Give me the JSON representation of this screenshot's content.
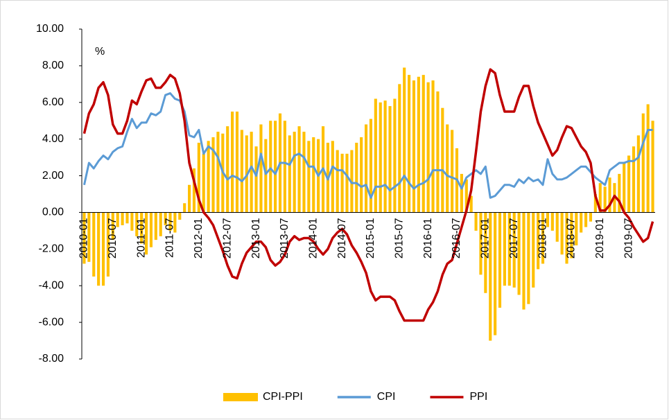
{
  "chart_data": {
    "type": "bar-line",
    "annotation": "%",
    "categories": [
      "2010-01",
      null,
      null,
      null,
      null,
      null,
      "2010-07",
      null,
      null,
      null,
      null,
      null,
      "2011-01",
      null,
      null,
      null,
      null,
      null,
      "2011-07",
      null,
      null,
      null,
      null,
      null,
      "2012-01",
      null,
      null,
      null,
      null,
      null,
      "2012-07",
      null,
      null,
      null,
      null,
      null,
      "2013-01",
      null,
      null,
      null,
      null,
      null,
      "2013-07",
      null,
      null,
      null,
      null,
      null,
      "2014-01",
      null,
      null,
      null,
      null,
      null,
      "2014-07",
      null,
      null,
      null,
      null,
      null,
      "2015-01",
      null,
      null,
      null,
      null,
      null,
      "2015-07",
      null,
      null,
      null,
      null,
      null,
      "2016-01",
      null,
      null,
      null,
      null,
      null,
      "2016-07",
      null,
      null,
      null,
      null,
      null,
      "2017-01",
      null,
      null,
      null,
      null,
      null,
      "2017-07",
      null,
      null,
      null,
      null,
      null,
      "2018-01",
      null,
      null,
      null,
      null,
      null,
      "2018-07",
      null,
      null,
      null,
      null,
      null,
      "2019-01",
      null,
      null,
      null,
      null,
      null,
      "2019-07",
      null,
      null,
      null,
      null,
      null
    ],
    "series": [
      {
        "name": "CPI-PPI",
        "kind": "bar",
        "color": "#ffc000",
        "values": [
          -2.8,
          -2.7,
          -3.5,
          -4.0,
          -4.0,
          -3.5,
          -1.5,
          -0.8,
          -0.7,
          -0.6,
          -1.0,
          -1.3,
          -1.7,
          -2.3,
          -1.9,
          -1.5,
          -1.3,
          -0.7,
          -1.0,
          -1.1,
          -0.4,
          0.5,
          1.5,
          2.4,
          3.8,
          3.2,
          3.9,
          4.1,
          4.4,
          4.3,
          4.7,
          5.5,
          5.5,
          4.5,
          4.2,
          4.4,
          3.6,
          4.8,
          4.0,
          5.0,
          5.0,
          5.4,
          5.0,
          4.2,
          4.4,
          4.7,
          4.4,
          3.9,
          4.1,
          4.0,
          4.7,
          3.8,
          3.9,
          3.4,
          3.2,
          3.2,
          3.4,
          3.8,
          4.1,
          4.8,
          5.1,
          6.2,
          6.0,
          6.1,
          5.8,
          6.2,
          7.0,
          7.9,
          7.5,
          7.2,
          7.4,
          7.5,
          7.1,
          7.2,
          6.6,
          5.7,
          4.8,
          4.5,
          3.5,
          2.1,
          1.8,
          0.9,
          -1.0,
          -3.4,
          -4.4,
          -7.0,
          -6.7,
          -5.2,
          -4.0,
          -4.0,
          -4.1,
          -4.5,
          -5.3,
          -5.0,
          -4.1,
          -3.1,
          -2.8,
          -0.8,
          -1.0,
          -1.6,
          -2.3,
          -2.8,
          -2.5,
          -1.8,
          -1.1,
          -0.8,
          -0.5,
          1.0,
          1.6,
          1.4,
          1.9,
          1.6,
          2.1,
          2.7,
          3.1,
          3.6,
          4.2,
          5.4,
          5.9,
          5.0
        ]
      },
      {
        "name": "CPI",
        "kind": "line",
        "color": "#5b9bd5",
        "values": [
          1.5,
          2.7,
          2.4,
          2.8,
          3.1,
          2.9,
          3.3,
          3.5,
          3.6,
          4.4,
          5.1,
          4.6,
          4.9,
          4.9,
          5.4,
          5.3,
          5.5,
          6.4,
          6.5,
          6.2,
          6.1,
          5.5,
          4.2,
          4.1,
          4.5,
          3.2,
          3.6,
          3.4,
          3.0,
          2.2,
          1.8,
          2.0,
          1.9,
          1.7,
          2.0,
          2.5,
          2.0,
          3.2,
          2.1,
          2.4,
          2.1,
          2.7,
          2.7,
          2.6,
          3.1,
          3.2,
          3.0,
          2.5,
          2.5,
          2.0,
          2.4,
          1.8,
          2.5,
          2.3,
          2.3,
          2.0,
          1.6,
          1.6,
          1.4,
          1.5,
          0.8,
          1.4,
          1.4,
          1.5,
          1.2,
          1.4,
          1.6,
          2.0,
          1.6,
          1.3,
          1.5,
          1.6,
          1.8,
          2.3,
          2.3,
          2.3,
          2.0,
          1.9,
          1.8,
          1.3,
          1.9,
          2.1,
          2.3,
          2.1,
          2.5,
          0.8,
          0.9,
          1.2,
          1.5,
          1.5,
          1.4,
          1.8,
          1.6,
          1.9,
          1.7,
          1.8,
          1.5,
          2.9,
          2.1,
          1.8,
          1.8,
          1.9,
          2.1,
          2.3,
          2.5,
          2.5,
          2.2,
          1.9,
          1.7,
          1.5,
          2.3,
          2.5,
          2.7,
          2.7,
          2.8,
          2.8,
          3.0,
          3.8,
          4.5,
          4.5
        ]
      },
      {
        "name": "PPI",
        "kind": "line",
        "color": "#c00000",
        "values": [
          4.3,
          5.4,
          5.9,
          6.8,
          7.1,
          6.4,
          4.8,
          4.3,
          4.3,
          5.0,
          6.1,
          5.9,
          6.6,
          7.2,
          7.3,
          6.8,
          6.8,
          7.1,
          7.5,
          7.3,
          6.5,
          5.0,
          2.7,
          1.7,
          0.7,
          0.0,
          -0.3,
          -0.7,
          -1.4,
          -2.1,
          -2.9,
          -3.5,
          -3.6,
          -2.8,
          -2.2,
          -1.9,
          -1.6,
          -1.6,
          -1.9,
          -2.6,
          -2.9,
          -2.7,
          -2.3,
          -1.6,
          -1.3,
          -1.5,
          -1.4,
          -1.4,
          -1.6,
          -2.0,
          -2.3,
          -2.0,
          -1.4,
          -1.1,
          -0.9,
          -1.2,
          -1.8,
          -2.2,
          -2.7,
          -3.3,
          -4.3,
          -4.8,
          -4.6,
          -4.6,
          -4.6,
          -4.8,
          -5.4,
          -5.9,
          -5.9,
          -5.9,
          -5.9,
          -5.9,
          -5.3,
          -4.9,
          -4.3,
          -3.4,
          -2.8,
          -2.6,
          -1.7,
          -0.8,
          0.1,
          1.2,
          3.3,
          5.5,
          6.9,
          7.8,
          7.6,
          6.4,
          5.5,
          5.5,
          5.5,
          6.3,
          6.9,
          6.9,
          5.8,
          4.9,
          4.3,
          3.7,
          3.1,
          3.4,
          4.1,
          4.7,
          4.6,
          4.1,
          3.6,
          3.3,
          2.7,
          0.9,
          0.1,
          0.1,
          0.4,
          0.9,
          0.6,
          0.0,
          -0.3,
          -0.8,
          -1.2,
          -1.6,
          -1.4,
          -0.5
        ]
      }
    ],
    "ylim": [
      -8,
      10
    ],
    "yticks": [
      {
        "value": -8,
        "label": "-8.00"
      },
      {
        "value": -6,
        "label": "-6.00"
      },
      {
        "value": -4,
        "label": "-4.00"
      },
      {
        "value": -2,
        "label": "-2.00"
      },
      {
        "value": 0,
        "label": "0.00"
      },
      {
        "value": 2,
        "label": "2.00"
      },
      {
        "value": 4,
        "label": "4.00"
      },
      {
        "value": 6,
        "label": "6.00"
      },
      {
        "value": 8,
        "label": "8.00"
      },
      {
        "value": 10,
        "label": "10.00"
      }
    ],
    "grid": false,
    "legend": "bottom"
  }
}
